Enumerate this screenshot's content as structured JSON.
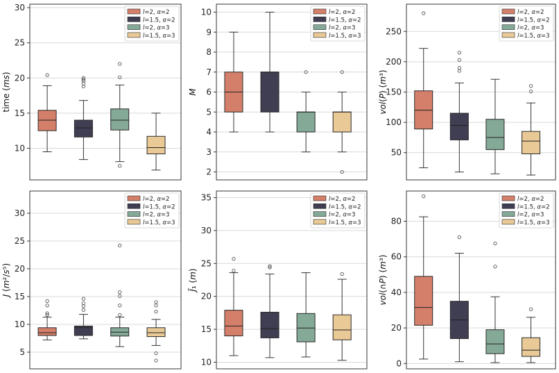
{
  "colors": {
    "series": [
      "#d47f69",
      "#3f3e52",
      "#84a996",
      "#e9c996"
    ],
    "grid": "#d9d9d9",
    "axis": "#333333",
    "median": "#222222",
    "whisker": "#333333",
    "outlier": "#555555"
  },
  "legend_labels": [
    "l=2, α=2",
    "l=1.5, α=2",
    "l=2, α=3",
    "l=1.5, α=3"
  ],
  "chart_data": [
    {
      "type": "box",
      "id": "time",
      "ylabel": "time (ms)",
      "ylim": [
        5.5,
        30.5
      ],
      "yticks": [
        10,
        15,
        20,
        25,
        30
      ],
      "legend_position": "top-right",
      "series": [
        {
          "name": "l=2, α=2",
          "q1": 12.5,
          "median": 14.0,
          "q3": 15.4,
          "whisker_low": 9.5,
          "whisker_high": 18.9,
          "outliers": [
            20.4
          ]
        },
        {
          "name": "l=1.5, α=2",
          "q1": 11.6,
          "median": 12.9,
          "q3": 14.0,
          "whisker_low": 8.4,
          "whisker_high": 16.8,
          "outliers": [
            18.8,
            19.2,
            19.6,
            19.8,
            20.0
          ]
        },
        {
          "name": "l=2, α=3",
          "q1": 12.6,
          "median": 14.0,
          "q3": 15.6,
          "whisker_low": 8.1,
          "whisker_high": 19.0,
          "outliers": [
            7.5,
            20.1,
            22.0
          ]
        },
        {
          "name": "l=1.5, α=3",
          "q1": 9.2,
          "median": 10.1,
          "q3": 11.7,
          "whisker_low": 6.9,
          "whisker_high": 15.0,
          "outliers": []
        }
      ]
    },
    {
      "type": "box",
      "id": "M",
      "ylabel": "M",
      "ylim": [
        1.6,
        10.4
      ],
      "yticks": [
        2,
        3,
        4,
        5,
        6,
        7,
        8,
        9,
        10
      ],
      "legend_position": "top-right",
      "series": [
        {
          "name": "l=2, α=2",
          "q1": 5,
          "median": 6,
          "q3": 7,
          "whisker_low": 4,
          "whisker_high": 9,
          "outliers": []
        },
        {
          "name": "l=1.5, α=2",
          "q1": 5,
          "median": 7,
          "q3": 7,
          "whisker_low": 4,
          "whisker_high": 10,
          "outliers": []
        },
        {
          "name": "l=2, α=3",
          "q1": 4,
          "median": 5,
          "q3": 5,
          "whisker_low": 3,
          "whisker_high": 6,
          "outliers": [
            7
          ]
        },
        {
          "name": "l=1.5, α=3",
          "q1": 4,
          "median": 5,
          "q3": 5,
          "whisker_low": 3,
          "whisker_high": 6,
          "outliers": [
            2,
            7
          ]
        }
      ]
    },
    {
      "type": "box",
      "id": "volP",
      "ylabel": "vol(P) (m³)",
      "ylim": [
        5,
        295
      ],
      "yticks": [
        50,
        100,
        150,
        200,
        250
      ],
      "legend_position": "top-right",
      "series": [
        {
          "name": "l=2, α=2",
          "q1": 89,
          "median": 120,
          "q3": 152,
          "whisker_low": 25,
          "whisker_high": 222,
          "outliers": [
            280
          ]
        },
        {
          "name": "l=1.5, α=2",
          "q1": 71,
          "median": 95,
          "q3": 115,
          "whisker_low": 18,
          "whisker_high": 165,
          "outliers": [
            185,
            190,
            203,
            215
          ]
        },
        {
          "name": "l=2, α=3",
          "q1": 55,
          "median": 75,
          "q3": 105,
          "whisker_low": 15,
          "whisker_high": 171,
          "outliers": []
        },
        {
          "name": "l=1.5, α=3",
          "q1": 48,
          "median": 69,
          "q3": 85,
          "whisker_low": 13,
          "whisker_high": 132,
          "outliers": [
            151,
            160
          ]
        }
      ]
    },
    {
      "type": "box",
      "id": "J",
      "ylabel": "J (m²/s⁵)",
      "ylim": [
        2,
        34
      ],
      "yticks": [
        5,
        10,
        15,
        20,
        25,
        30
      ],
      "legend_position": "top-right",
      "series": [
        {
          "name": "l=2, α=2",
          "q1": 8.0,
          "median": 8.5,
          "q3": 9.4,
          "whisker_low": 7.2,
          "whisker_high": 11.3,
          "outliers": [
            11.7,
            12.0,
            13.4,
            14.2
          ]
        },
        {
          "name": "l=1.5, α=2",
          "q1": 8.0,
          "median": 9.4,
          "q3": 9.7,
          "whisker_low": 7.4,
          "whisker_high": 11.8,
          "outliers": [
            12.6,
            13.3,
            13.8,
            14.6
          ]
        },
        {
          "name": "l=2, α=3",
          "q1": 7.9,
          "median": 8.6,
          "q3": 9.4,
          "whisker_low": 6.0,
          "whisker_high": 11.3,
          "outliers": [
            11.7,
            13.4,
            15.1,
            15.8,
            24.2
          ]
        },
        {
          "name": "l=1.5, α=3",
          "q1": 7.8,
          "median": 8.5,
          "q3": 9.4,
          "whisker_low": 6.2,
          "whisker_high": 10.9,
          "outliers": [
            3.5,
            4.8,
            12.3,
            13.4,
            14.0
          ]
        }
      ]
    },
    {
      "type": "box",
      "id": "J1",
      "ylabel": "J̃₁ (m)",
      "ylim": [
        9,
        36
      ],
      "yticks": [
        10,
        15,
        20,
        25,
        30,
        35
      ],
      "legend_position": "top-right",
      "series": [
        {
          "name": "l=2, α=2",
          "q1": 14.0,
          "median": 15.5,
          "q3": 17.9,
          "whisker_low": 11.0,
          "whisker_high": 23.6,
          "outliers": [
            23.9,
            25.7
          ]
        },
        {
          "name": "l=1.5, α=2",
          "q1": 13.7,
          "median": 15.1,
          "q3": 17.6,
          "whisker_low": 10.7,
          "whisker_high": 23.4,
          "outliers": [
            24.4,
            24.6
          ]
        },
        {
          "name": "l=2, α=3",
          "q1": 13.1,
          "median": 15.2,
          "q3": 17.4,
          "whisker_low": 10.8,
          "whisker_high": 23.6,
          "outliers": []
        },
        {
          "name": "l=1.5, α=3",
          "q1": 13.4,
          "median": 14.9,
          "q3": 17.2,
          "whisker_low": 10.3,
          "whisker_high": 22.6,
          "outliers": [
            23.4
          ]
        }
      ]
    },
    {
      "type": "box",
      "id": "volCapP",
      "ylabel": "vol(∩P) (m³)",
      "ylim": [
        -3,
        97
      ],
      "yticks": [
        0,
        20,
        40,
        60,
        80
      ],
      "legend_position": "top-right",
      "series": [
        {
          "name": "l=2, α=2",
          "q1": 21.5,
          "median": 31.5,
          "q3": 49.0,
          "whisker_low": 2.5,
          "whisker_high": 82.5,
          "outliers": [
            94
          ]
        },
        {
          "name": "l=1.5, α=2",
          "q1": 14.0,
          "median": 24.5,
          "q3": 35.0,
          "whisker_low": 1.0,
          "whisker_high": 62.0,
          "outliers": [
            71
          ]
        },
        {
          "name": "l=2, α=3",
          "q1": 5.5,
          "median": 11.0,
          "q3": 19.0,
          "whisker_low": 0.5,
          "whisker_high": 37.5,
          "outliers": [
            54.5,
            67.5
          ]
        },
        {
          "name": "l=1.5, α=3",
          "q1": 4.0,
          "median": 7.5,
          "q3": 14.5,
          "whisker_low": 0.5,
          "whisker_high": 26.0,
          "outliers": [
            30.5
          ]
        }
      ]
    }
  ]
}
